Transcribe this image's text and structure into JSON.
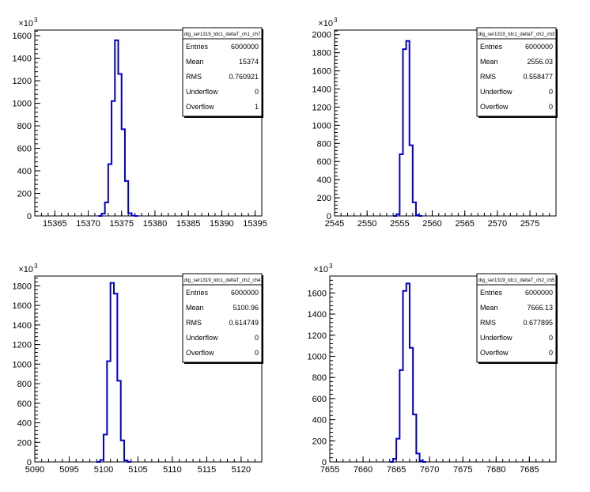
{
  "chart_data": [
    {
      "type": "histogram",
      "stats_title": "dig_ser1319_tdc1_deltaT_ch1_ch7",
      "stats": [
        {
          "label": "Entries",
          "value": "6000000"
        },
        {
          "label": "Mean",
          "value": "15374"
        },
        {
          "label": "RMS",
          "value": "0.760921"
        },
        {
          "label": "Underflow",
          "value": "0"
        },
        {
          "label": "Overflow",
          "value": "1"
        }
      ],
      "y_exponent_label": "×10",
      "y_exponent": "3",
      "xlim": [
        15362,
        15396
      ],
      "ylim": [
        0,
        1650
      ],
      "x_ticks": [
        15365,
        15370,
        15375,
        15380,
        15385,
        15390,
        15395
      ],
      "x_tick_labels": [
        "15365",
        "15370",
        "15375",
        "15380",
        "15385",
        "15390",
        "15395"
      ],
      "y_ticks": [
        0,
        200,
        400,
        600,
        800,
        1000,
        1200,
        1400,
        1600
      ],
      "y_tick_labels": [
        "0",
        "200",
        "400",
        "600",
        "800",
        "1000",
        "1200",
        "1400",
        "1600"
      ],
      "bin_width": 0.5,
      "bins": [
        {
          "x": 15371.5,
          "y": 0
        },
        {
          "x": 15372.0,
          "y": 20
        },
        {
          "x": 15372.5,
          "y": 120
        },
        {
          "x": 15373.0,
          "y": 460
        },
        {
          "x": 15373.5,
          "y": 1020
        },
        {
          "x": 15374.0,
          "y": 1560
        },
        {
          "x": 15374.5,
          "y": 1260
        },
        {
          "x": 15375.0,
          "y": 770
        },
        {
          "x": 15375.5,
          "y": 310
        },
        {
          "x": 15376.0,
          "y": 25
        },
        {
          "x": 15376.5,
          "y": 3
        },
        {
          "x": 15377.0,
          "y": 0
        }
      ],
      "line_color": "#0000cc"
    },
    {
      "type": "histogram",
      "stats_title": "dig_ser1319_tdc1_deltaT_ch2_ch3",
      "stats": [
        {
          "label": "Entries",
          "value": "6000000"
        },
        {
          "label": "Mean",
          "value": "2556.03"
        },
        {
          "label": "RMS",
          "value": "0.558477"
        },
        {
          "label": "Underflow",
          "value": "0"
        },
        {
          "label": "Overflow",
          "value": "0"
        }
      ],
      "y_exponent_label": "×10",
      "y_exponent": "3",
      "xlim": [
        2545,
        2579
      ],
      "ylim": [
        0,
        2050
      ],
      "x_ticks": [
        2545,
        2550,
        2555,
        2560,
        2565,
        2570,
        2575
      ],
      "x_tick_labels": [
        "2545",
        "2550",
        "2555",
        "2560",
        "2565",
        "2570",
        "2575"
      ],
      "y_ticks": [
        0,
        200,
        400,
        600,
        800,
        1000,
        1200,
        1400,
        1600,
        1800,
        2000
      ],
      "y_tick_labels": [
        "0",
        "200",
        "400",
        "600",
        "800",
        "1000",
        "1200",
        "1400",
        "1600",
        "1800",
        "2000"
      ],
      "bin_width": 0.5,
      "bins": [
        {
          "x": 2554.0,
          "y": 0
        },
        {
          "x": 2554.5,
          "y": 20
        },
        {
          "x": 2555.0,
          "y": 680
        },
        {
          "x": 2555.5,
          "y": 1840
        },
        {
          "x": 2556.0,
          "y": 1930
        },
        {
          "x": 2556.5,
          "y": 780
        },
        {
          "x": 2557.0,
          "y": 150
        },
        {
          "x": 2557.5,
          "y": 10
        },
        {
          "x": 2558.0,
          "y": 0
        }
      ],
      "line_color": "#0000cc"
    },
    {
      "type": "histogram",
      "stats_title": "dig_ser1319_tdc1_deltaT_ch2_ch4",
      "stats": [
        {
          "label": "Entries",
          "value": "6000000"
        },
        {
          "label": "Mean",
          "value": "5100.96"
        },
        {
          "label": "RMS",
          "value": "0.614749"
        },
        {
          "label": "Underflow",
          "value": "0"
        },
        {
          "label": "Overflow",
          "value": "0"
        }
      ],
      "y_exponent_label": "×10",
      "y_exponent": "3",
      "xlim": [
        5090,
        5123
      ],
      "ylim": [
        0,
        1900
      ],
      "x_ticks": [
        5090,
        5095,
        5100,
        5105,
        5110,
        5115,
        5120
      ],
      "x_tick_labels": [
        "5090",
        "5095",
        "5100",
        "5105",
        "5110",
        "5115",
        "5120"
      ],
      "y_ticks": [
        0,
        200,
        400,
        600,
        800,
        1000,
        1200,
        1400,
        1600,
        1800
      ],
      "y_tick_labels": [
        "0",
        "200",
        "400",
        "600",
        "800",
        "1000",
        "1200",
        "1400",
        "1600",
        "1800"
      ],
      "bin_width": 0.5,
      "bins": [
        {
          "x": 5099.0,
          "y": 0
        },
        {
          "x": 5099.5,
          "y": 20
        },
        {
          "x": 5100.0,
          "y": 280
        },
        {
          "x": 5100.5,
          "y": 1030
        },
        {
          "x": 5101.0,
          "y": 1830
        },
        {
          "x": 5101.5,
          "y": 1720
        },
        {
          "x": 5102.0,
          "y": 830
        },
        {
          "x": 5102.5,
          "y": 220
        },
        {
          "x": 5103.0,
          "y": 15
        },
        {
          "x": 5103.5,
          "y": 0
        }
      ],
      "line_color": "#0000cc"
    },
    {
      "type": "histogram",
      "stats_title": "dig_ser1319_tdc1_deltaT_ch2_ch5",
      "stats": [
        {
          "label": "Entries",
          "value": "6000000"
        },
        {
          "label": "Mean",
          "value": "7666.13"
        },
        {
          "label": "RMS",
          "value": "0.677895"
        },
        {
          "label": "Underflow",
          "value": "0"
        },
        {
          "label": "Overflow",
          "value": "0"
        }
      ],
      "y_exponent_label": "×10",
      "y_exponent": "3",
      "xlim": [
        7655,
        7689
      ],
      "ylim": [
        0,
        1760
      ],
      "x_ticks": [
        7655,
        7660,
        7665,
        7670,
        7675,
        7680,
        7685
      ],
      "x_tick_labels": [
        "7655",
        "7660",
        "7665",
        "7670",
        "7675",
        "7680",
        "7685"
      ],
      "y_ticks": [
        0,
        200,
        400,
        600,
        800,
        1000,
        1200,
        1400,
        1600
      ],
      "y_tick_labels": [
        "0",
        "200",
        "400",
        "600",
        "800",
        "1000",
        "1200",
        "1400",
        "1600"
      ],
      "bin_width": 0.5,
      "bins": [
        {
          "x": 7664.0,
          "y": 0
        },
        {
          "x": 7664.5,
          "y": 30
        },
        {
          "x": 7665.0,
          "y": 220
        },
        {
          "x": 7665.5,
          "y": 870
        },
        {
          "x": 7666.0,
          "y": 1620
        },
        {
          "x": 7666.5,
          "y": 1690
        },
        {
          "x": 7667.0,
          "y": 1080
        },
        {
          "x": 7667.5,
          "y": 450
        },
        {
          "x": 7668.0,
          "y": 80
        },
        {
          "x": 7668.5,
          "y": 10
        },
        {
          "x": 7669.0,
          "y": 0
        }
      ],
      "line_color": "#0000cc"
    }
  ]
}
